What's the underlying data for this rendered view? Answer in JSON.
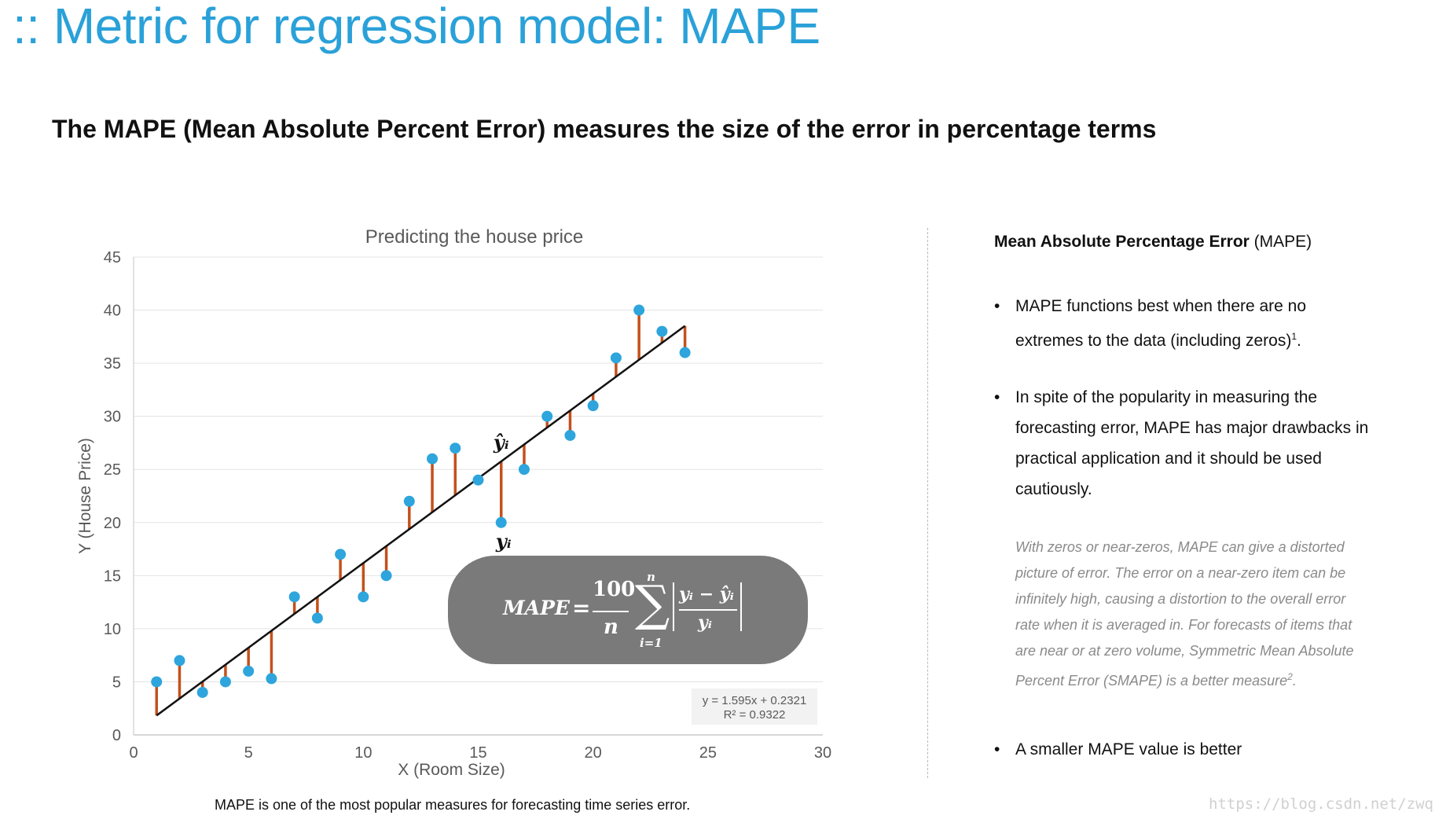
{
  "slide_title": ":: Metric for regression model: MAPE",
  "subtitle": "The MAPE (Mean Absolute Percent Error) measures the size of the error in percentage terms",
  "right_panel": {
    "heading_bold": "Mean Absolute Percentage Error",
    "heading_rest": " (MAPE)",
    "bullet_symbol": "•",
    "bullet1": "MAPE functions best when there are no extremes to the data (including zeros)",
    "bullet1_sup": "1",
    "bullet1_end": ".",
    "bullet2": "In spite of the popularity in measuring the forecasting error, MAPE has major drawbacks in practical application and  it should be used cautiously.",
    "note": "With zeros or near-zeros, MAPE can give a distorted picture of error. The error on a near-zero item can be infinitely high, causing a distortion to the overall error rate when it is averaged in. For forecasts of items that are near or at zero volume, Symmetric Mean Absolute Percent Error (SMAPE) is a better measure",
    "note_sup": "2",
    "note_end": ".",
    "bullet3": "A smaller MAPE value is better"
  },
  "caption": "MAPE is one of the most popular measures for forecasting time series error.",
  "watermark": "https://blog.csdn.net/zwqjoy",
  "formula": {
    "lhs": "MAPE",
    "eq": "=",
    "numerator": "100",
    "denominator": "n",
    "sigma": "∑",
    "sum_upper": "n",
    "sum_lower": "i=1",
    "inner_numerator": "yᵢ − ŷᵢ",
    "inner_denominator": "yᵢ"
  },
  "colors": {
    "title": "#2aa1d8",
    "points": "#2ea5dc",
    "residuals": "#c4501c",
    "fit_line": "#111111",
    "formula_box": "#7a7a7a"
  },
  "chart_data": {
    "type": "scatter",
    "title": "Predicting the house price",
    "xlabel": "X (Room Size)",
    "ylabel": "Y (House Price)",
    "xlim": [
      0,
      30
    ],
    "ylim": [
      0,
      45
    ],
    "xticks": [
      0,
      5,
      10,
      15,
      20,
      25,
      30
    ],
    "yticks": [
      0,
      5,
      10,
      15,
      20,
      25,
      30,
      35,
      40,
      45
    ],
    "grid": true,
    "x": [
      1,
      2,
      3,
      4,
      5,
      6,
      7,
      8,
      9,
      10,
      11,
      12,
      13,
      14,
      15,
      16,
      17,
      18,
      19,
      20,
      21,
      22,
      23,
      24
    ],
    "y": [
      5,
      7,
      4,
      5,
      6,
      5.3,
      13,
      11,
      17,
      13,
      15,
      22,
      26,
      27,
      24,
      20,
      25,
      30,
      28.2,
      31,
      35.5,
      40,
      38,
      36
    ],
    "trendline": {
      "slope": 1.595,
      "intercept": 0.2321,
      "x_range": [
        1,
        24
      ]
    },
    "trend_equation": "y = 1.595x + 0.2321",
    "r_squared": "R² = 0.9322",
    "annotations": {
      "yhat_label": "ŷᵢ",
      "y_label": "yᵢ",
      "at_x": 16
    }
  }
}
